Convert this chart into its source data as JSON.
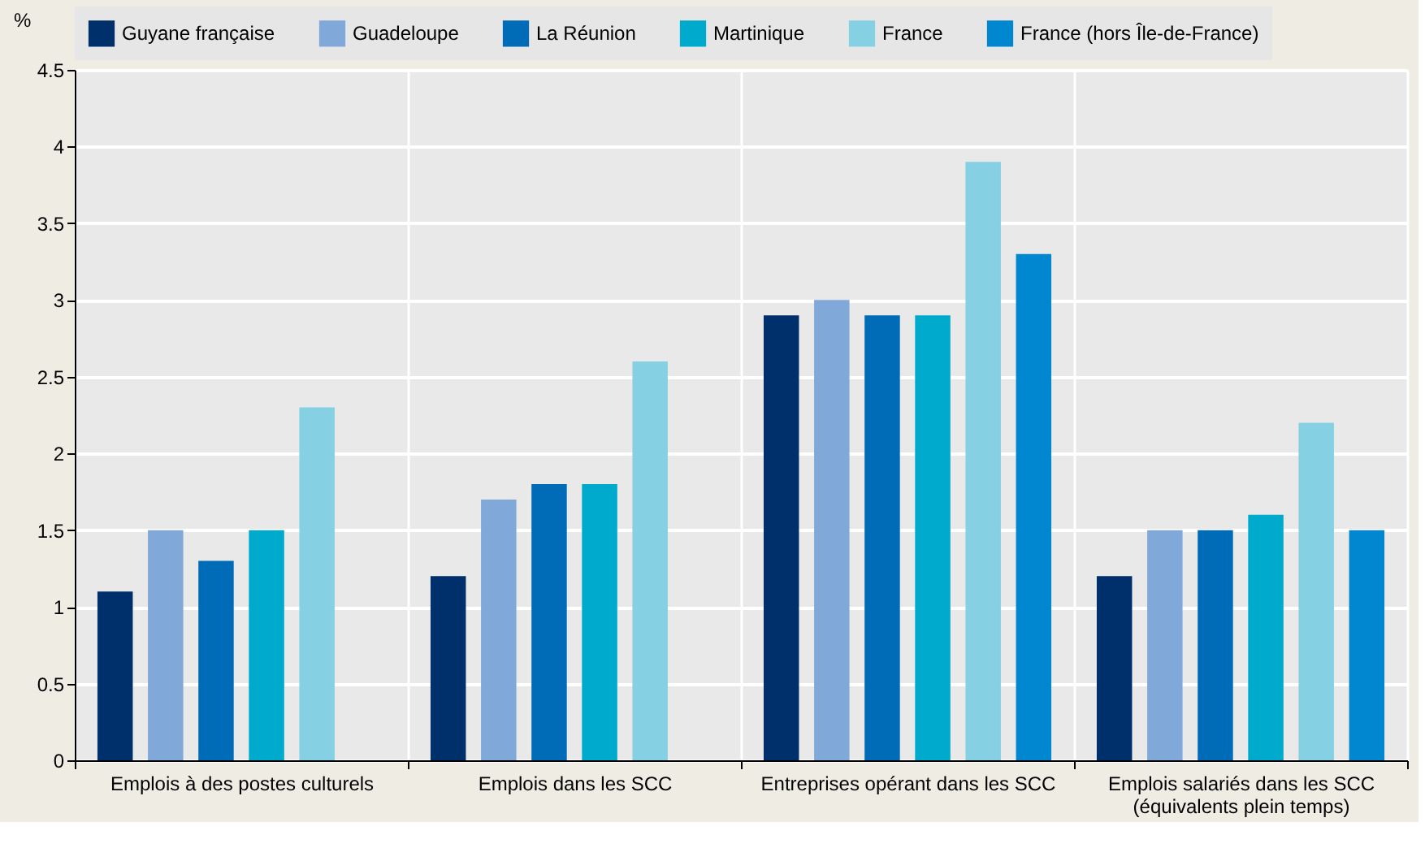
{
  "chart_data": {
    "type": "bar",
    "ylabel": "%",
    "categories": [
      "Emplois à des postes culturels",
      "Emplois dans les SCC",
      "Entreprises opérant dans les SCC",
      "Emplois salariés dans les SCC\n(équivalents plein temps)"
    ],
    "series": [
      {
        "name": "Guyane française",
        "color": "#00306b",
        "values": [
          1.1,
          1.2,
          2.9,
          1.2
        ]
      },
      {
        "name": "Guadeloupe",
        "color": "#80a8d9",
        "values": [
          1.5,
          1.7,
          3.0,
          1.5
        ]
      },
      {
        "name": "La Réunion",
        "color": "#006bb6",
        "values": [
          1.3,
          1.8,
          2.9,
          1.5
        ]
      },
      {
        "name": "Martinique",
        "color": "#00aacc",
        "values": [
          1.5,
          1.8,
          2.9,
          1.6
        ]
      },
      {
        "name": "France",
        "color": "#85d1e3",
        "values": [
          2.3,
          2.6,
          3.9,
          2.2
        ]
      },
      {
        "name": "France (hors Île-de-France)",
        "color": "#0087d0",
        "values": [
          null,
          null,
          3.3,
          1.5
        ]
      }
    ],
    "ylim": [
      0,
      4.5
    ],
    "yticks": [
      0,
      0.5,
      1,
      1.5,
      2,
      2.5,
      3,
      3.5,
      4,
      4.5
    ],
    "grid": true,
    "legend": "top"
  }
}
